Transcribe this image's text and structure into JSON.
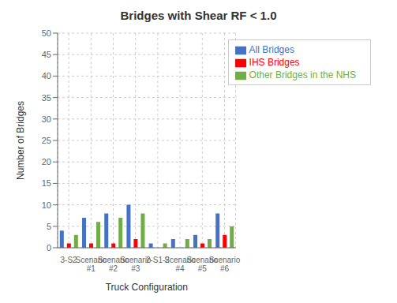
{
  "chart_data": {
    "type": "bar",
    "title": "Bridges with Shear RF < 1.0",
    "xlabel": "Truck Configuration",
    "ylabel": "Number of Bridges",
    "categories": [
      "3-S2",
      "Scenario #1",
      "Scenario #2",
      "Scenario #3",
      "2-S1-2",
      "Scenario #4",
      "Scenario #5",
      "Scenario #6"
    ],
    "series": [
      {
        "name": "All Bridges",
        "color": "#4472C4",
        "values": [
          4,
          7,
          8,
          10,
          1,
          2,
          3,
          8
        ]
      },
      {
        "name": "IHS Bridges",
        "color": "#FF0000",
        "values": [
          1,
          1,
          1,
          2,
          0,
          0,
          1,
          3
        ]
      },
      {
        "name": "Other Bridges in the NHS",
        "color": "#70AD47",
        "values": [
          3,
          6,
          7,
          8,
          1,
          2,
          2,
          5
        ]
      }
    ],
    "ylim": [
      0,
      50
    ],
    "yticks": [
      0,
      5,
      10,
      15,
      20,
      25,
      30,
      35,
      40,
      45,
      50
    ],
    "grid": true,
    "legend": "upper right"
  }
}
